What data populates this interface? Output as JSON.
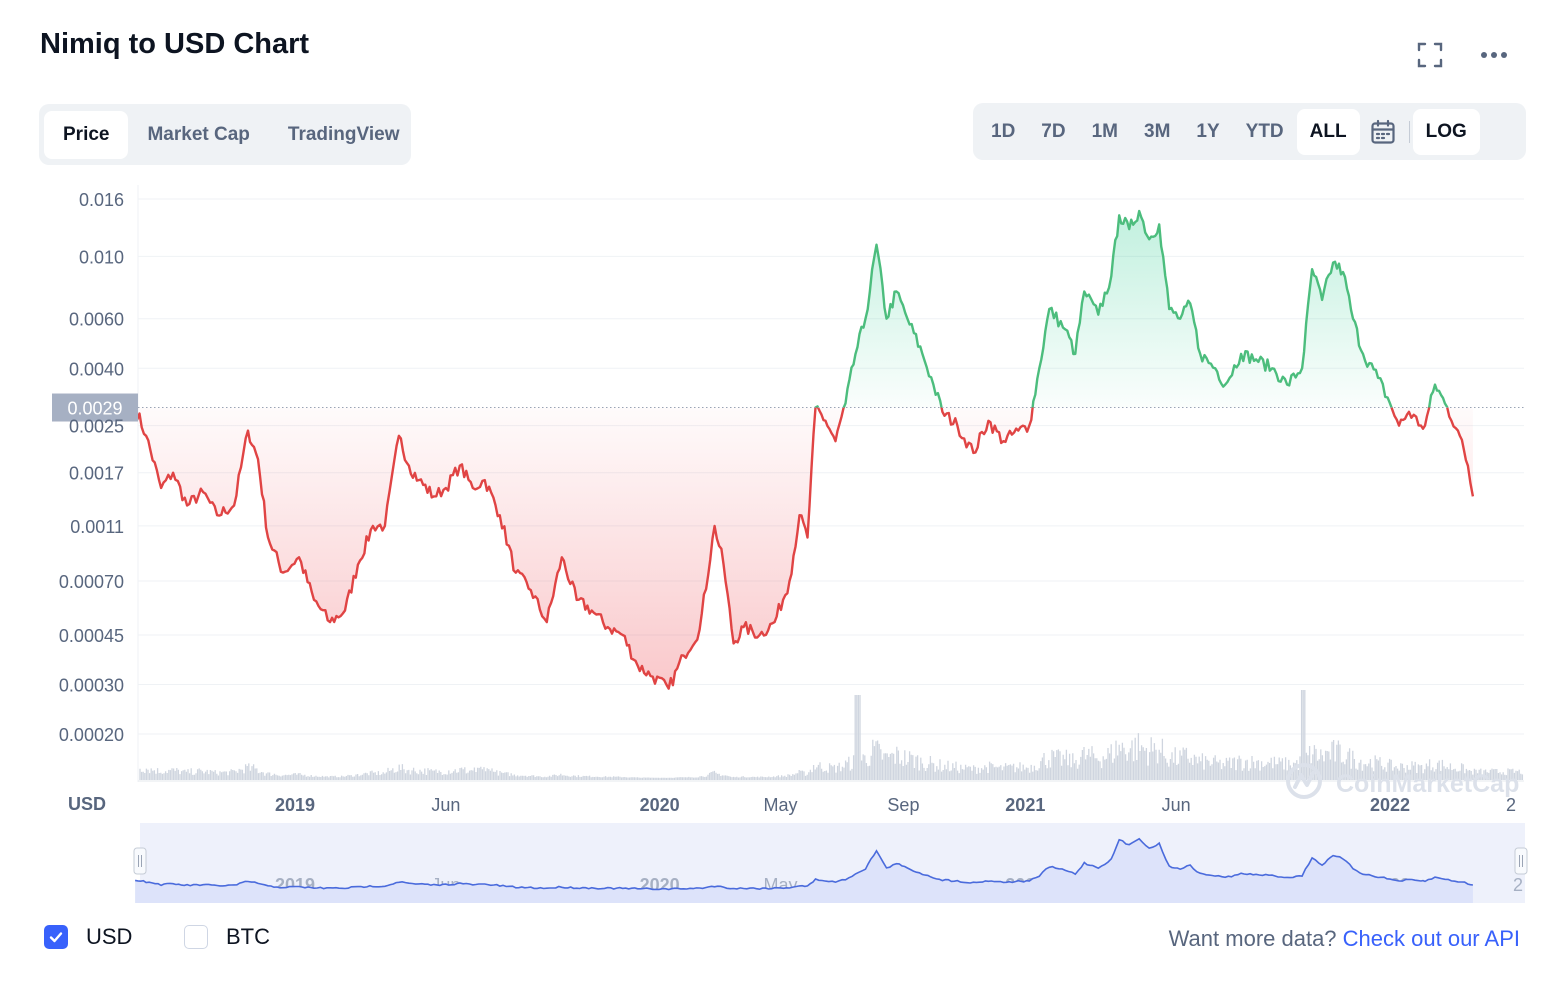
{
  "header": {
    "title": "Nimiq to USD Chart",
    "fullscreen_icon": "fullscreen-icon",
    "more_icon": "more-horizontal-icon"
  },
  "tabs": [
    {
      "label": "Price",
      "active": true
    },
    {
      "label": "Market Cap",
      "active": false
    },
    {
      "label": "TradingView",
      "active": false
    }
  ],
  "ranges": [
    {
      "label": "1D",
      "active": false
    },
    {
      "label": "7D",
      "active": false
    },
    {
      "label": "1M",
      "active": false
    },
    {
      "label": "3M",
      "active": false
    },
    {
      "label": "1Y",
      "active": false
    },
    {
      "label": "YTD",
      "active": false
    },
    {
      "label": "ALL",
      "active": true
    }
  ],
  "calendar_icon": "calendar-icon",
  "log_label": "LOG",
  "colors": {
    "up": "#16c784",
    "up_line": "#4cbd7d",
    "down_line": "#e04444",
    "volume": "#cfd5df",
    "navigator_line": "#4a6bdc",
    "navigator_fill": "#dfe5fb",
    "accent": "#3861fb"
  },
  "watermark": "CoinMarketCap",
  "chart_data": {
    "type": "area",
    "currency_label": "USD",
    "y_scale": "log",
    "y_ticks": [
      "0.016",
      "0.010",
      "0.0060",
      "0.0040",
      "0.0025",
      "0.0017",
      "0.0011",
      "0.00070",
      "0.00045",
      "0.00030",
      "0.00020"
    ],
    "y_tick_values": [
      0.016,
      0.01,
      0.006,
      0.004,
      0.0025,
      0.0017,
      0.0011,
      0.0007,
      0.00045,
      0.0003,
      0.0002
    ],
    "reference_label": "0.0029",
    "reference_value": 0.0029,
    "x_ticks": [
      {
        "label": "2019",
        "date": "2019-01-01",
        "bold": true
      },
      {
        "label": "Jun",
        "date": "2019-06-01",
        "bold": false
      },
      {
        "label": "2020",
        "date": "2020-01-01",
        "bold": true
      },
      {
        "label": "May",
        "date": "2020-05-01",
        "bold": false
      },
      {
        "label": "Sep",
        "date": "2020-09-01",
        "bold": false
      },
      {
        "label": "2021",
        "date": "2021-01-01",
        "bold": true
      },
      {
        "label": "Jun",
        "date": "2021-06-01",
        "bold": false
      },
      {
        "label": "2022",
        "date": "2022-01-01",
        "bold": true
      },
      {
        "label": "2",
        "date": "2022-02-01",
        "bold": false
      }
    ],
    "x_range": [
      "2018-07-25",
      "2022-02-05"
    ],
    "series": [
      {
        "points": [
          [
            "2018-07-25",
            0.0029
          ],
          [
            "2018-08-05",
            0.0023
          ],
          [
            "2018-08-20",
            0.0015
          ],
          [
            "2018-09-01",
            0.0017
          ],
          [
            "2018-09-15",
            0.0013
          ],
          [
            "2018-10-01",
            0.00145
          ],
          [
            "2018-10-15",
            0.0012
          ],
          [
            "2018-11-01",
            0.0013
          ],
          [
            "2018-11-15",
            0.0024
          ],
          [
            "2018-11-25",
            0.0019
          ],
          [
            "2018-12-05",
            0.001
          ],
          [
            "2018-12-20",
            0.00075
          ],
          [
            "2019-01-05",
            0.00085
          ],
          [
            "2019-01-20",
            0.0006
          ],
          [
            "2019-02-05",
            0.0005
          ],
          [
            "2019-02-20",
            0.00055
          ],
          [
            "2019-03-05",
            0.0008
          ],
          [
            "2019-03-20",
            0.0011
          ],
          [
            "2019-04-01",
            0.0011
          ],
          [
            "2019-04-15",
            0.0023
          ],
          [
            "2019-04-25",
            0.0018
          ],
          [
            "2019-05-05",
            0.0016
          ],
          [
            "2019-05-20",
            0.0014
          ],
          [
            "2019-06-01",
            0.0015
          ],
          [
            "2019-06-15",
            0.0018
          ],
          [
            "2019-06-28",
            0.0015
          ],
          [
            "2019-07-10",
            0.0016
          ],
          [
            "2019-07-25",
            0.0012
          ],
          [
            "2019-08-10",
            0.00075
          ],
          [
            "2019-08-25",
            0.00065
          ],
          [
            "2019-09-10",
            0.0005
          ],
          [
            "2019-09-25",
            0.00085
          ],
          [
            "2019-10-10",
            0.0006
          ],
          [
            "2019-10-25",
            0.00055
          ],
          [
            "2019-11-10",
            0.00048
          ],
          [
            "2019-11-25",
            0.00045
          ],
          [
            "2019-12-10",
            0.00035
          ],
          [
            "2019-12-25",
            0.00032
          ],
          [
            "2020-01-10",
            0.00029
          ],
          [
            "2020-01-25",
            0.00038
          ],
          [
            "2020-02-10",
            0.00047
          ],
          [
            "2020-02-25",
            0.0011
          ],
          [
            "2020-03-05",
            0.0008
          ],
          [
            "2020-03-15",
            0.00042
          ],
          [
            "2020-03-25",
            0.00048
          ],
          [
            "2020-04-10",
            0.00045
          ],
          [
            "2020-04-25",
            0.0005
          ],
          [
            "2020-05-10",
            0.0007
          ],
          [
            "2020-05-20",
            0.0012
          ],
          [
            "2020-05-28",
            0.001
          ],
          [
            "2020-06-05",
            0.0029
          ],
          [
            "2020-06-15",
            0.0026
          ],
          [
            "2020-06-25",
            0.0022
          ],
          [
            "2020-07-05",
            0.003
          ],
          [
            "2020-07-15",
            0.0045
          ],
          [
            "2020-07-25",
            0.006
          ],
          [
            "2020-08-05",
            0.011
          ],
          [
            "2020-08-15",
            0.006
          ],
          [
            "2020-08-25",
            0.0075
          ],
          [
            "2020-09-05",
            0.006
          ],
          [
            "2020-09-20",
            0.0045
          ],
          [
            "2020-10-01",
            0.0035
          ],
          [
            "2020-10-10",
            0.0028
          ],
          [
            "2020-10-25",
            0.0025
          ],
          [
            "2020-11-10",
            0.002
          ],
          [
            "2020-11-25",
            0.0026
          ],
          [
            "2020-12-10",
            0.0022
          ],
          [
            "2020-12-25",
            0.0024
          ],
          [
            "2021-01-05",
            0.0025
          ],
          [
            "2021-01-15",
            0.004
          ],
          [
            "2021-01-25",
            0.0065
          ],
          [
            "2021-02-10",
            0.0055
          ],
          [
            "2021-02-20",
            0.0045
          ],
          [
            "2021-03-01",
            0.0075
          ],
          [
            "2021-03-15",
            0.0062
          ],
          [
            "2021-03-28",
            0.0085
          ],
          [
            "2021-04-05",
            0.014
          ],
          [
            "2021-04-15",
            0.0125
          ],
          [
            "2021-04-25",
            0.0145
          ],
          [
            "2021-05-05",
            0.0115
          ],
          [
            "2021-05-15",
            0.013
          ],
          [
            "2021-05-25",
            0.0065
          ],
          [
            "2021-06-05",
            0.006
          ],
          [
            "2021-06-15",
            0.0068
          ],
          [
            "2021-06-25",
            0.0045
          ],
          [
            "2021-07-10",
            0.004
          ],
          [
            "2021-07-20",
            0.0035
          ],
          [
            "2021-08-05",
            0.0045
          ],
          [
            "2021-08-20",
            0.0043
          ],
          [
            "2021-09-05",
            0.004
          ],
          [
            "2021-09-20",
            0.0035
          ],
          [
            "2021-10-05",
            0.004
          ],
          [
            "2021-10-15",
            0.009
          ],
          [
            "2021-10-25",
            0.007
          ],
          [
            "2021-11-05",
            0.0095
          ],
          [
            "2021-11-15",
            0.0088
          ],
          [
            "2021-11-25",
            0.006
          ],
          [
            "2021-12-05",
            0.0045
          ],
          [
            "2021-12-20",
            0.0037
          ],
          [
            "2022-01-01",
            0.003
          ],
          [
            "2022-01-10",
            0.0025
          ],
          [
            "2022-01-20",
            0.0028
          ],
          [
            "2022-02-01",
            0.0025
          ],
          [
            "2022-02-05",
            0.0025
          ],
          [
            "2022-02-15",
            0.0035
          ],
          [
            "2022-02-25",
            0.003
          ],
          [
            "2022-03-10",
            0.0024
          ],
          [
            "2022-03-20",
            0.0018
          ],
          [
            "2022-03-25",
            0.0014
          ]
        ]
      }
    ],
    "navigator": {
      "x_ticks": [
        "2019",
        "Jun",
        "2020",
        "May",
        "Sep",
        "2021",
        "Jun",
        "2022",
        "2"
      ]
    }
  },
  "legend": [
    {
      "label": "USD",
      "checked": true
    },
    {
      "label": "BTC",
      "checked": false
    }
  ],
  "api": {
    "text": "Want more data?",
    "link": "Check out our API"
  }
}
